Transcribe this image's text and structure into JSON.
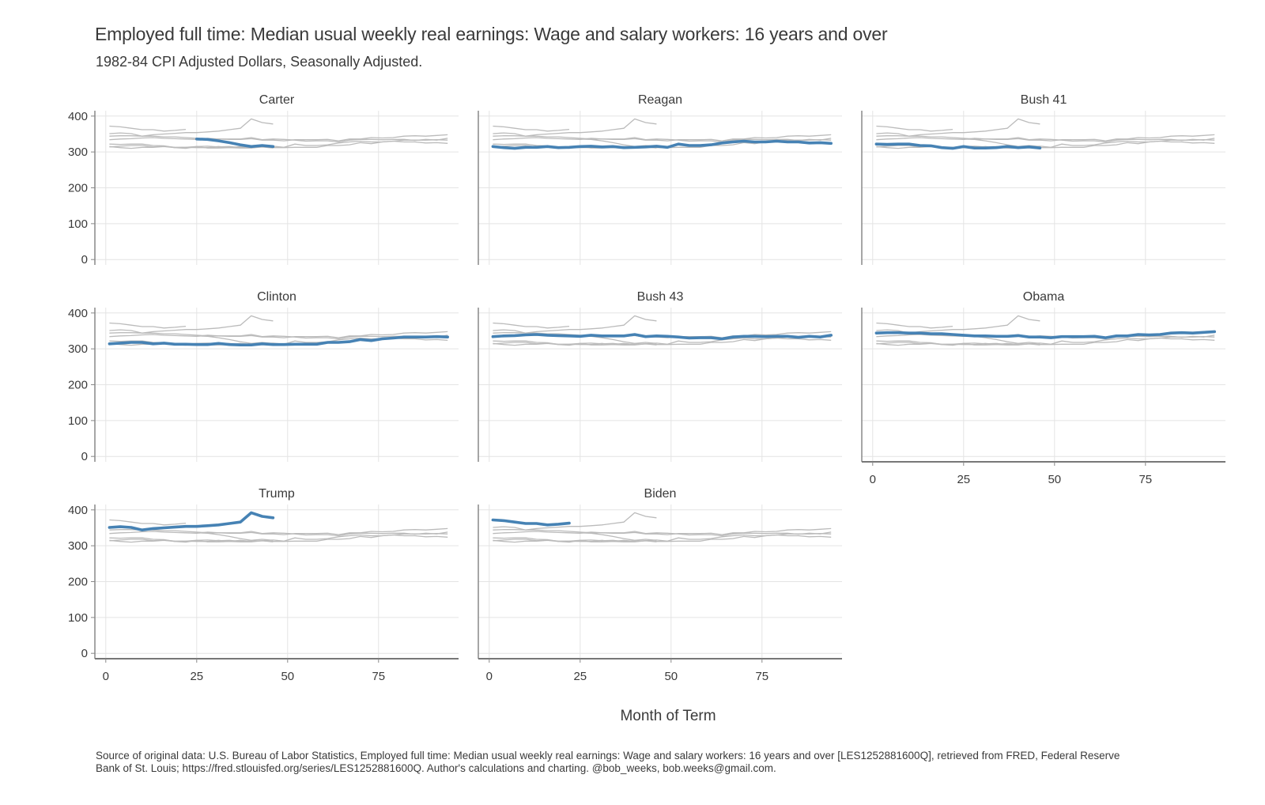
{
  "title": "Employed full time: Median usual weekly real earnings: Wage and salary workers: 16 years and over",
  "subtitle": "1982-84 CPI Adjusted Dollars, Seasonally Adjusted.",
  "caption": "Source of original data: U.S. Bureau of Labor Statistics, Employed full time: Median usual weekly real earnings: Wage and salary workers: 16 years and over [LES1252881600Q], retrieved from FRED, Federal Reserve Bank of St. Louis; https://fred.stlouisfed.org/series/LES1252881600Q. Author's calculations and charting. @bob_weeks, bob.weeks@gmail.com.",
  "chart_data": {
    "type": "line",
    "xlabel": "Month of Term",
    "ylabel": "",
    "xlim": [
      -3,
      97
    ],
    "ylim": [
      -15,
      415
    ],
    "x_ticks": [
      0,
      25,
      50,
      75
    ],
    "y_ticks": [
      0,
      100,
      200,
      300,
      400
    ],
    "grid": true,
    "highlight_color": "#4682b4",
    "background_color": "#bbbbbb",
    "series": [
      {
        "name": "Carter",
        "x": [
          25,
          28,
          31,
          34,
          37,
          40,
          43,
          46
        ],
        "y": [
          336,
          335,
          331,
          326,
          320,
          315,
          318,
          315
        ]
      },
      {
        "name": "Reagan",
        "x": [
          1,
          4,
          7,
          10,
          13,
          16,
          19,
          22,
          25,
          28,
          31,
          34,
          37,
          40,
          43,
          46,
          49,
          52,
          55,
          58,
          61,
          64,
          67,
          70,
          73,
          76,
          79,
          82,
          85,
          88,
          91,
          94
        ],
        "y": [
          315,
          312,
          310,
          313,
          313,
          315,
          312,
          313,
          315,
          316,
          314,
          315,
          312,
          313,
          314,
          316,
          313,
          322,
          318,
          318,
          320,
          325,
          328,
          330,
          328,
          328,
          330,
          328,
          328,
          325,
          326,
          324
        ]
      },
      {
        "name": "Bush 41",
        "x": [
          1,
          4,
          7,
          10,
          13,
          16,
          19,
          22,
          25,
          28,
          31,
          34,
          37,
          40,
          43,
          46
        ],
        "y": [
          322,
          321,
          322,
          322,
          318,
          317,
          312,
          310,
          315,
          311,
          311,
          312,
          315,
          312,
          314,
          311
        ]
      },
      {
        "name": "Clinton",
        "x": [
          1,
          4,
          7,
          10,
          13,
          16,
          19,
          22,
          25,
          28,
          31,
          34,
          37,
          40,
          43,
          46,
          49,
          52,
          55,
          58,
          61,
          64,
          67,
          70,
          73,
          76,
          79,
          82,
          85,
          88,
          91,
          94
        ],
        "y": [
          314,
          316,
          318,
          318,
          314,
          316,
          313,
          313,
          312,
          312,
          315,
          312,
          311,
          311,
          314,
          312,
          312,
          313,
          313,
          313,
          318,
          318,
          320,
          326,
          323,
          328,
          330,
          333,
          333,
          333,
          334,
          333
        ]
      },
      {
        "name": "Bush 43",
        "x": [
          1,
          4,
          7,
          10,
          13,
          16,
          19,
          22,
          25,
          28,
          31,
          34,
          37,
          40,
          43,
          46,
          49,
          52,
          55,
          58,
          61,
          64,
          67,
          70,
          73,
          76,
          79,
          82,
          85,
          88,
          91,
          94
        ],
        "y": [
          334,
          336,
          337,
          339,
          340,
          338,
          337,
          336,
          335,
          338,
          336,
          336,
          336,
          340,
          334,
          336,
          335,
          333,
          330,
          331,
          331,
          328,
          333,
          335,
          335,
          334,
          335,
          335,
          332,
          335,
          333,
          338
        ]
      },
      {
        "name": "Obama",
        "x": [
          1,
          4,
          7,
          10,
          13,
          16,
          19,
          22,
          25,
          28,
          31,
          34,
          37,
          40,
          43,
          46,
          49,
          52,
          55,
          58,
          61,
          64,
          67,
          70,
          73,
          76,
          79,
          82,
          85,
          88,
          91,
          94
        ],
        "y": [
          344,
          345,
          345,
          344,
          344,
          342,
          342,
          340,
          338,
          336,
          336,
          335,
          335,
          337,
          333,
          333,
          331,
          334,
          334,
          334,
          335,
          331,
          336,
          336,
          340,
          339,
          340,
          344,
          345,
          344,
          346,
          348
        ]
      },
      {
        "name": "Trump",
        "x": [
          1,
          4,
          7,
          10,
          13,
          16,
          19,
          22,
          25,
          28,
          31,
          34,
          37,
          40,
          43,
          46
        ],
        "y": [
          351,
          353,
          351,
          344,
          348,
          350,
          352,
          354,
          354,
          356,
          358,
          362,
          366,
          392,
          382,
          378
        ]
      },
      {
        "name": "Biden",
        "x": [
          1,
          4,
          7,
          10,
          13,
          16,
          19,
          22
        ],
        "y": [
          372,
          370,
          366,
          362,
          362,
          358,
          360,
          363
        ]
      }
    ]
  }
}
